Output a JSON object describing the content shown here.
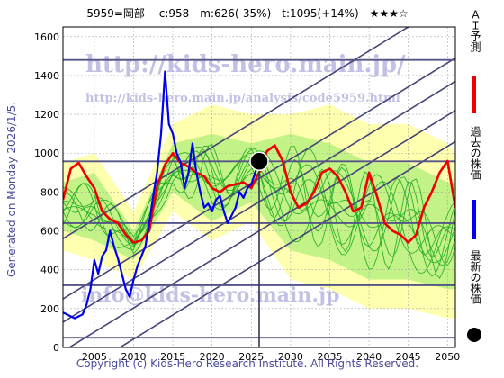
{
  "header": {
    "title": "5959=岡部　 c:958　m:626(-35%)　t:1095(+14%)　★★★☆"
  },
  "footer": {
    "copyright": "Copyright (c) Kids-Hero Research Institute. All Rights Reserved."
  },
  "side_note": "Generated on Monday 2026/1/5.",
  "watermarks": {
    "site": "http://kids-hero.main.jp/",
    "page": "http://kids-hero.main.jp/analysis/code5959.html",
    "email": "info@kids-hero.main.jp"
  },
  "legend": [
    {
      "label": "ＡＩ予測",
      "color": "#ee0000",
      "marker": "line"
    },
    {
      "label": "過去の株価",
      "color": "#0000ee",
      "marker": "line"
    },
    {
      "label": "最新の株価",
      "color": "#000000",
      "marker": "dot"
    }
  ],
  "colors": {
    "band_outer": "#ffffb0",
    "band_inner": "#b8f080",
    "sim_line": "#22aa22",
    "channel": "#444477",
    "hline": "#555588",
    "ai": "#ee0000",
    "price": "#0000ee"
  },
  "chart_data": {
    "type": "line",
    "xlim": [
      2001,
      2051
    ],
    "ylim": [
      0,
      1650
    ],
    "xticks": [
      2005,
      2010,
      2015,
      2020,
      2025,
      2030,
      2035,
      2040,
      2045,
      2050
    ],
    "yticks": [
      0,
      200,
      400,
      600,
      800,
      1000,
      1200,
      1400,
      1600
    ],
    "grid": true,
    "latest": {
      "x": 2026.0,
      "y": 958
    },
    "hlines": [
      1480,
      958,
      640,
      320,
      50
    ],
    "channels": [
      {
        "x": [
          2001,
          2045
        ],
        "y": [
          560,
          1650
        ]
      },
      {
        "x": [
          2001,
          2051
        ],
        "y": [
          250,
          1490
        ]
      },
      {
        "x": [
          2001,
          2051
        ],
        "y": [
          130,
          1370
        ]
      },
      {
        "x": [
          2001,
          2051
        ],
        "y": [
          -20,
          1220
        ]
      },
      {
        "x": [
          2001,
          2051
        ],
        "y": [
          -180,
          1060
        ]
      }
    ],
    "price": {
      "name": "過去の株価",
      "x": [
        2001,
        2001.5,
        2002,
        2002.5,
        2003,
        2003.5,
        2004,
        2004.5,
        2005,
        2005.5,
        2006,
        2006.5,
        2007,
        2007.5,
        2008,
        2008.5,
        2009,
        2009.5,
        2010,
        2010.5,
        2011,
        2011.5,
        2012,
        2012.5,
        2013,
        2013.5,
        2014,
        2014.5,
        2015,
        2015.5,
        2016,
        2016.5,
        2017,
        2017.5,
        2018,
        2018.5,
        2019,
        2019.5,
        2020,
        2020.5,
        2021,
        2021.5,
        2022,
        2022.5,
        2023,
        2023.5,
        2024,
        2024.5,
        2025,
        2025.5,
        2026
      ],
      "y": [
        180,
        170,
        160,
        150,
        160,
        170,
        220,
        300,
        450,
        380,
        470,
        500,
        600,
        520,
        460,
        380,
        300,
        260,
        350,
        420,
        470,
        520,
        640,
        780,
        900,
        1100,
        1420,
        1150,
        1100,
        1000,
        950,
        820,
        900,
        1050,
        900,
        800,
        720,
        740,
        700,
        760,
        780,
        700,
        640,
        680,
        720,
        800,
        770,
        820,
        840,
        900,
        958
      ]
    },
    "ai_forecast": {
      "name": "AI予測",
      "x": [
        2001,
        2002,
        2003,
        2004,
        2005,
        2006,
        2007,
        2008,
        2009,
        2010,
        2011,
        2012,
        2013,
        2014,
        2015,
        2016,
        2017,
        2018,
        2019,
        2020,
        2021,
        2022,
        2023,
        2024,
        2025,
        2026,
        2027,
        2028,
        2029,
        2030,
        2031,
        2032,
        2033,
        2034,
        2035,
        2036,
        2037,
        2038,
        2039,
        2040,
        2041,
        2042,
        2043,
        2044,
        2045,
        2046,
        2047,
        2048,
        2049,
        2050,
        2051
      ],
      "y": [
        760,
        920,
        950,
        880,
        820,
        700,
        660,
        640,
        580,
        540,
        550,
        600,
        830,
        940,
        1000,
        950,
        930,
        900,
        880,
        820,
        800,
        830,
        840,
        850,
        820,
        900,
        1010,
        1040,
        960,
        800,
        720,
        740,
        800,
        900,
        920,
        880,
        800,
        700,
        720,
        900,
        780,
        640,
        600,
        580,
        540,
        580,
        720,
        800,
        900,
        960,
        720
      ]
    },
    "band_outer": {
      "x": [
        2001,
        2005,
        2010,
        2015,
        2020,
        2025,
        2030,
        2035,
        2040,
        2045,
        2050,
        2051
      ],
      "upper": [
        950,
        1000,
        700,
        1150,
        1250,
        1200,
        1200,
        1250,
        1150,
        1150,
        1050,
        1000
      ],
      "lower": [
        500,
        450,
        350,
        700,
        550,
        650,
        350,
        300,
        200,
        200,
        150,
        150
      ]
    },
    "band_inner": {
      "x": [
        2001,
        2005,
        2010,
        2015,
        2020,
        2025,
        2030,
        2035,
        2040,
        2045,
        2050,
        2051
      ],
      "upper": [
        850,
        900,
        600,
        1050,
        1100,
        1050,
        1100,
        1050,
        950,
        950,
        850,
        850
      ],
      "lower": [
        600,
        550,
        450,
        800,
        650,
        750,
        500,
        450,
        350,
        350,
        300,
        300
      ]
    }
  }
}
